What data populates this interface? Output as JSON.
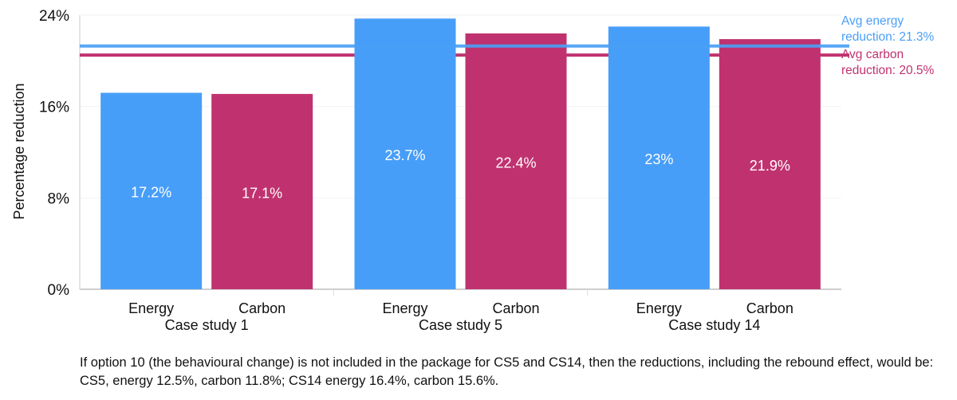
{
  "chart_data": {
    "type": "bar",
    "ylabel": "Percentage reduction",
    "ylim": [
      0,
      24
    ],
    "yticks": [
      "0%",
      "8%",
      "16%",
      "24%"
    ],
    "ytick_values": [
      0,
      8,
      16,
      24
    ],
    "groups": [
      {
        "label": "Case study 1",
        "bars": [
          {
            "label": "Energy",
            "value": 17.2,
            "text": "17.2%"
          },
          {
            "label": "Carbon",
            "value": 17.1,
            "text": "17.1%"
          }
        ]
      },
      {
        "label": "Case study 5",
        "bars": [
          {
            "label": "Energy",
            "value": 23.7,
            "text": "23.7%"
          },
          {
            "label": "Carbon",
            "value": 22.4,
            "text": "22.4%"
          }
        ]
      },
      {
        "label": "Case study 14",
        "bars": [
          {
            "label": "Energy",
            "value": 23,
            "text": "23%"
          },
          {
            "label": "Carbon",
            "value": 21.9,
            "text": "21.9%"
          }
        ]
      }
    ],
    "reference_lines": [
      {
        "name": "energy",
        "value": 21.3,
        "label_line1": "Avg energy",
        "label_line2": "reduction: 21.3%",
        "color": "#4a9ff5"
      },
      {
        "name": "carbon",
        "value": 20.5,
        "label_line1": "Avg carbon",
        "label_line2": "reduction: 20.5%",
        "color": "#c0326f"
      }
    ],
    "colors": {
      "Energy": "#479ef8",
      "Carbon": "#c0326f"
    }
  },
  "footnote": "If option 10 (the behavioural change) is not included in the package for CS5 and CS14, then the reductions, including the rebound effect, would be: CS5, energy 12.5%, carbon 11.8%; CS14 energy 16.4%, carbon 15.6%."
}
